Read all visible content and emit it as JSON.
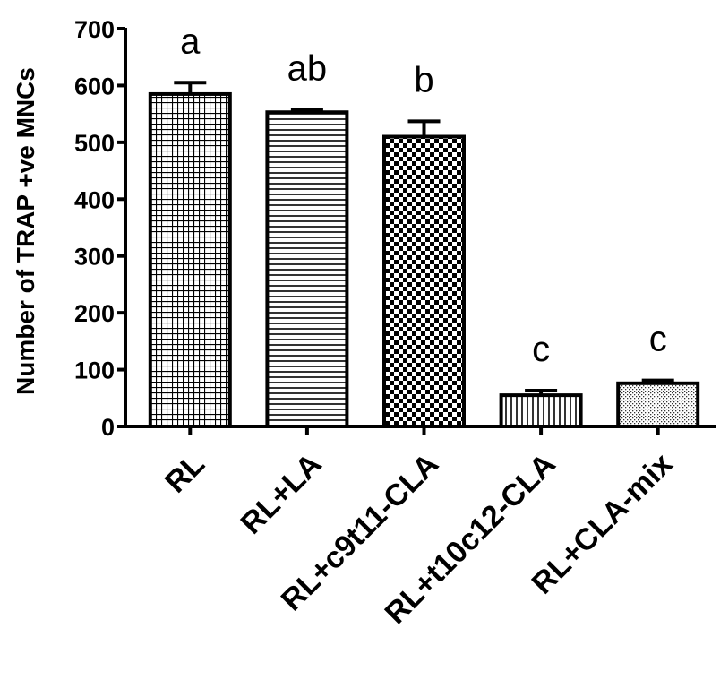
{
  "chart_data": {
    "type": "bar",
    "title": "",
    "xlabel": "",
    "ylabel": "Number of TRAP +ve MNCs",
    "ylim": [
      0,
      700
    ],
    "yticks": [
      0,
      100,
      200,
      300,
      400,
      500,
      600,
      700
    ],
    "grid": false,
    "categories": [
      "RL",
      "RL+LA",
      "RL+c9t11-CLA",
      "RL+t10c12-CLA",
      "RL+CLA-mix"
    ],
    "values": [
      585,
      553,
      510,
      55,
      76
    ],
    "errors": [
      20,
      4,
      27,
      8,
      5
    ],
    "annotations": [
      "a",
      "ab",
      "b",
      "c",
      "c"
    ],
    "patterns": [
      "grid",
      "horizontal",
      "checker",
      "vertical",
      "dots"
    ],
    "colors": {
      "bar_stroke": "#000000",
      "pattern_ink": "#000000",
      "background": "#ffffff"
    }
  }
}
